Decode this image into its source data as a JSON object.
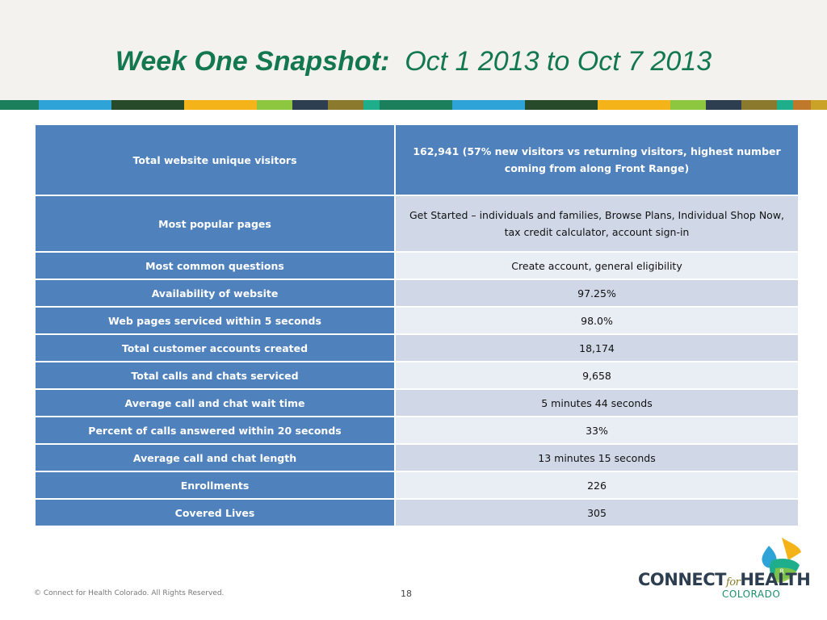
{
  "slide": {
    "title_bold": "Week One Snapshot:",
    "title_dates": "Oct 1 2013 to Oct 7 2013",
    "stripe_colors": [
      "#1a7f5a",
      "#2ea3d8",
      "#274a2a",
      "#f5b31a",
      "#8dc63f",
      "#2c3e50",
      "#8b7a2e",
      "#1fae8c",
      "#1a7f5a",
      "#2ea3d8",
      "#274a2a",
      "#f5b31a",
      "#8dc63f",
      "#2c3e50",
      "#8b7a2e",
      "#1fae8c",
      "#c0792b",
      "#c9a227"
    ]
  },
  "table": {
    "rows": [
      {
        "label": "Total website unique visitors",
        "value": "162,941 (57% new visitors vs returning visitors, highest number coming from along Front Range)"
      },
      {
        "label": "Most popular pages",
        "value": "Get Started – individuals and families, Browse Plans, Individual Shop Now, tax credit calculator, account sign-in"
      },
      {
        "label": "Most common questions",
        "value": "Create account, general eligibility"
      },
      {
        "label": "Availability of website",
        "value": "97.25%"
      },
      {
        "label": "Web pages serviced within 5 seconds",
        "value": "98.0%"
      },
      {
        "label": "Total customer accounts created",
        "value": "18,174"
      },
      {
        "label": "Total calls and chats serviced",
        "value": "9,658"
      },
      {
        "label": "Average call and chat wait time",
        "value": "5 minutes 44 seconds"
      },
      {
        "label": "Percent of calls answered within 20 seconds",
        "value": "33%"
      },
      {
        "label": "Average call and chat length",
        "value": "13 minutes 15 seconds"
      },
      {
        "label": "Enrollments",
        "value": "226"
      },
      {
        "label": "Covered Lives",
        "value": "305"
      }
    ]
  },
  "footer": {
    "copyright": "© Connect for Health Colorado. All Rights Reserved.",
    "page_number": "18"
  },
  "logo": {
    "text_connect": "CONNECT",
    "text_for": "for",
    "text_health": "HEALTH",
    "text_colorado": "COLORADO",
    "badge_number": "8"
  }
}
